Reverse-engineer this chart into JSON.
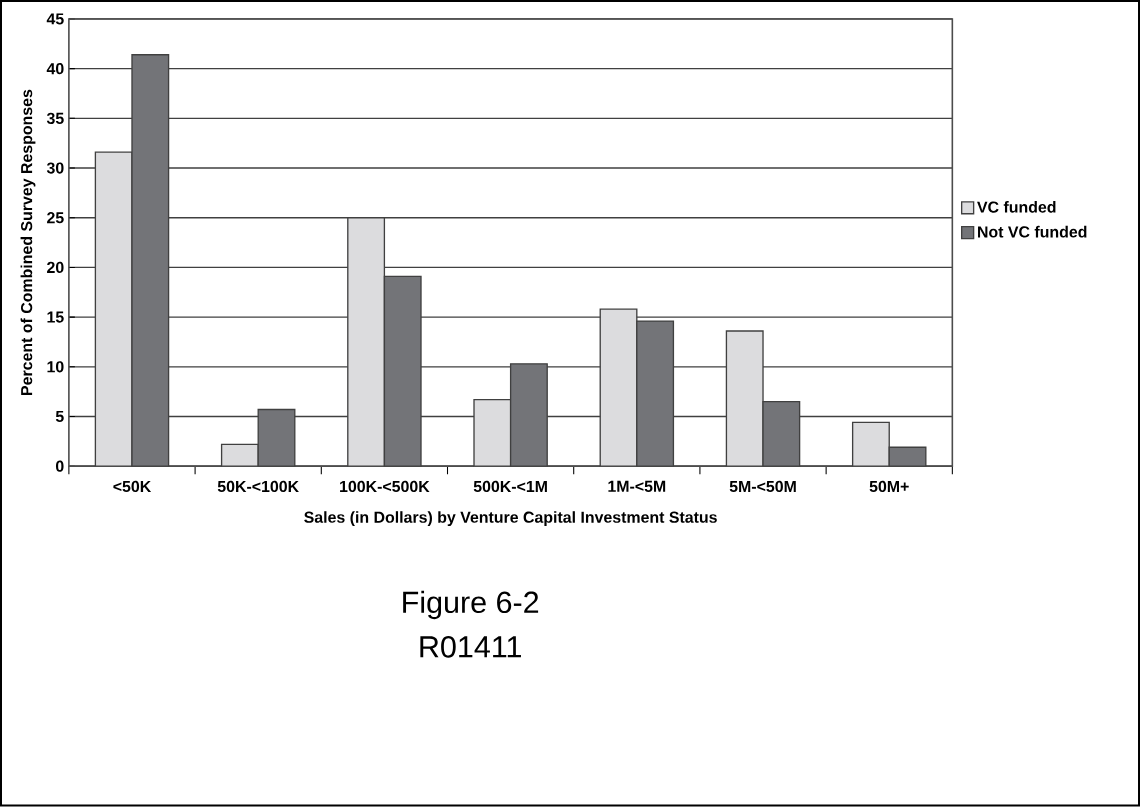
{
  "chart_data": {
    "type": "bar",
    "xlabel": "Sales (in Dollars) by Venture Capital Investment Status",
    "ylabel": "Percent of Combined Survey Responses",
    "categories": [
      "<50K",
      "50K-<100K",
      "100K-<500K",
      "500K-<1M",
      "1M-<5M",
      "5M-<50M",
      "50M+"
    ],
    "series": [
      {
        "name": "VC funded",
        "color": "#dcdcde",
        "values": [
          31.6,
          2.2,
          25.0,
          6.7,
          15.8,
          13.6,
          4.4
        ]
      },
      {
        "name": "Not VC funded",
        "color": "#737478",
        "values": [
          41.4,
          5.7,
          19.1,
          10.3,
          14.6,
          6.5,
          1.9
        ]
      }
    ],
    "ylim": [
      0,
      45
    ],
    "yticks": [
      0,
      5,
      10,
      15,
      20,
      25,
      30,
      35,
      40,
      45
    ],
    "grid": "y",
    "legend": "right",
    "annotations": [
      "Figure 6-2",
      "R01411"
    ]
  }
}
